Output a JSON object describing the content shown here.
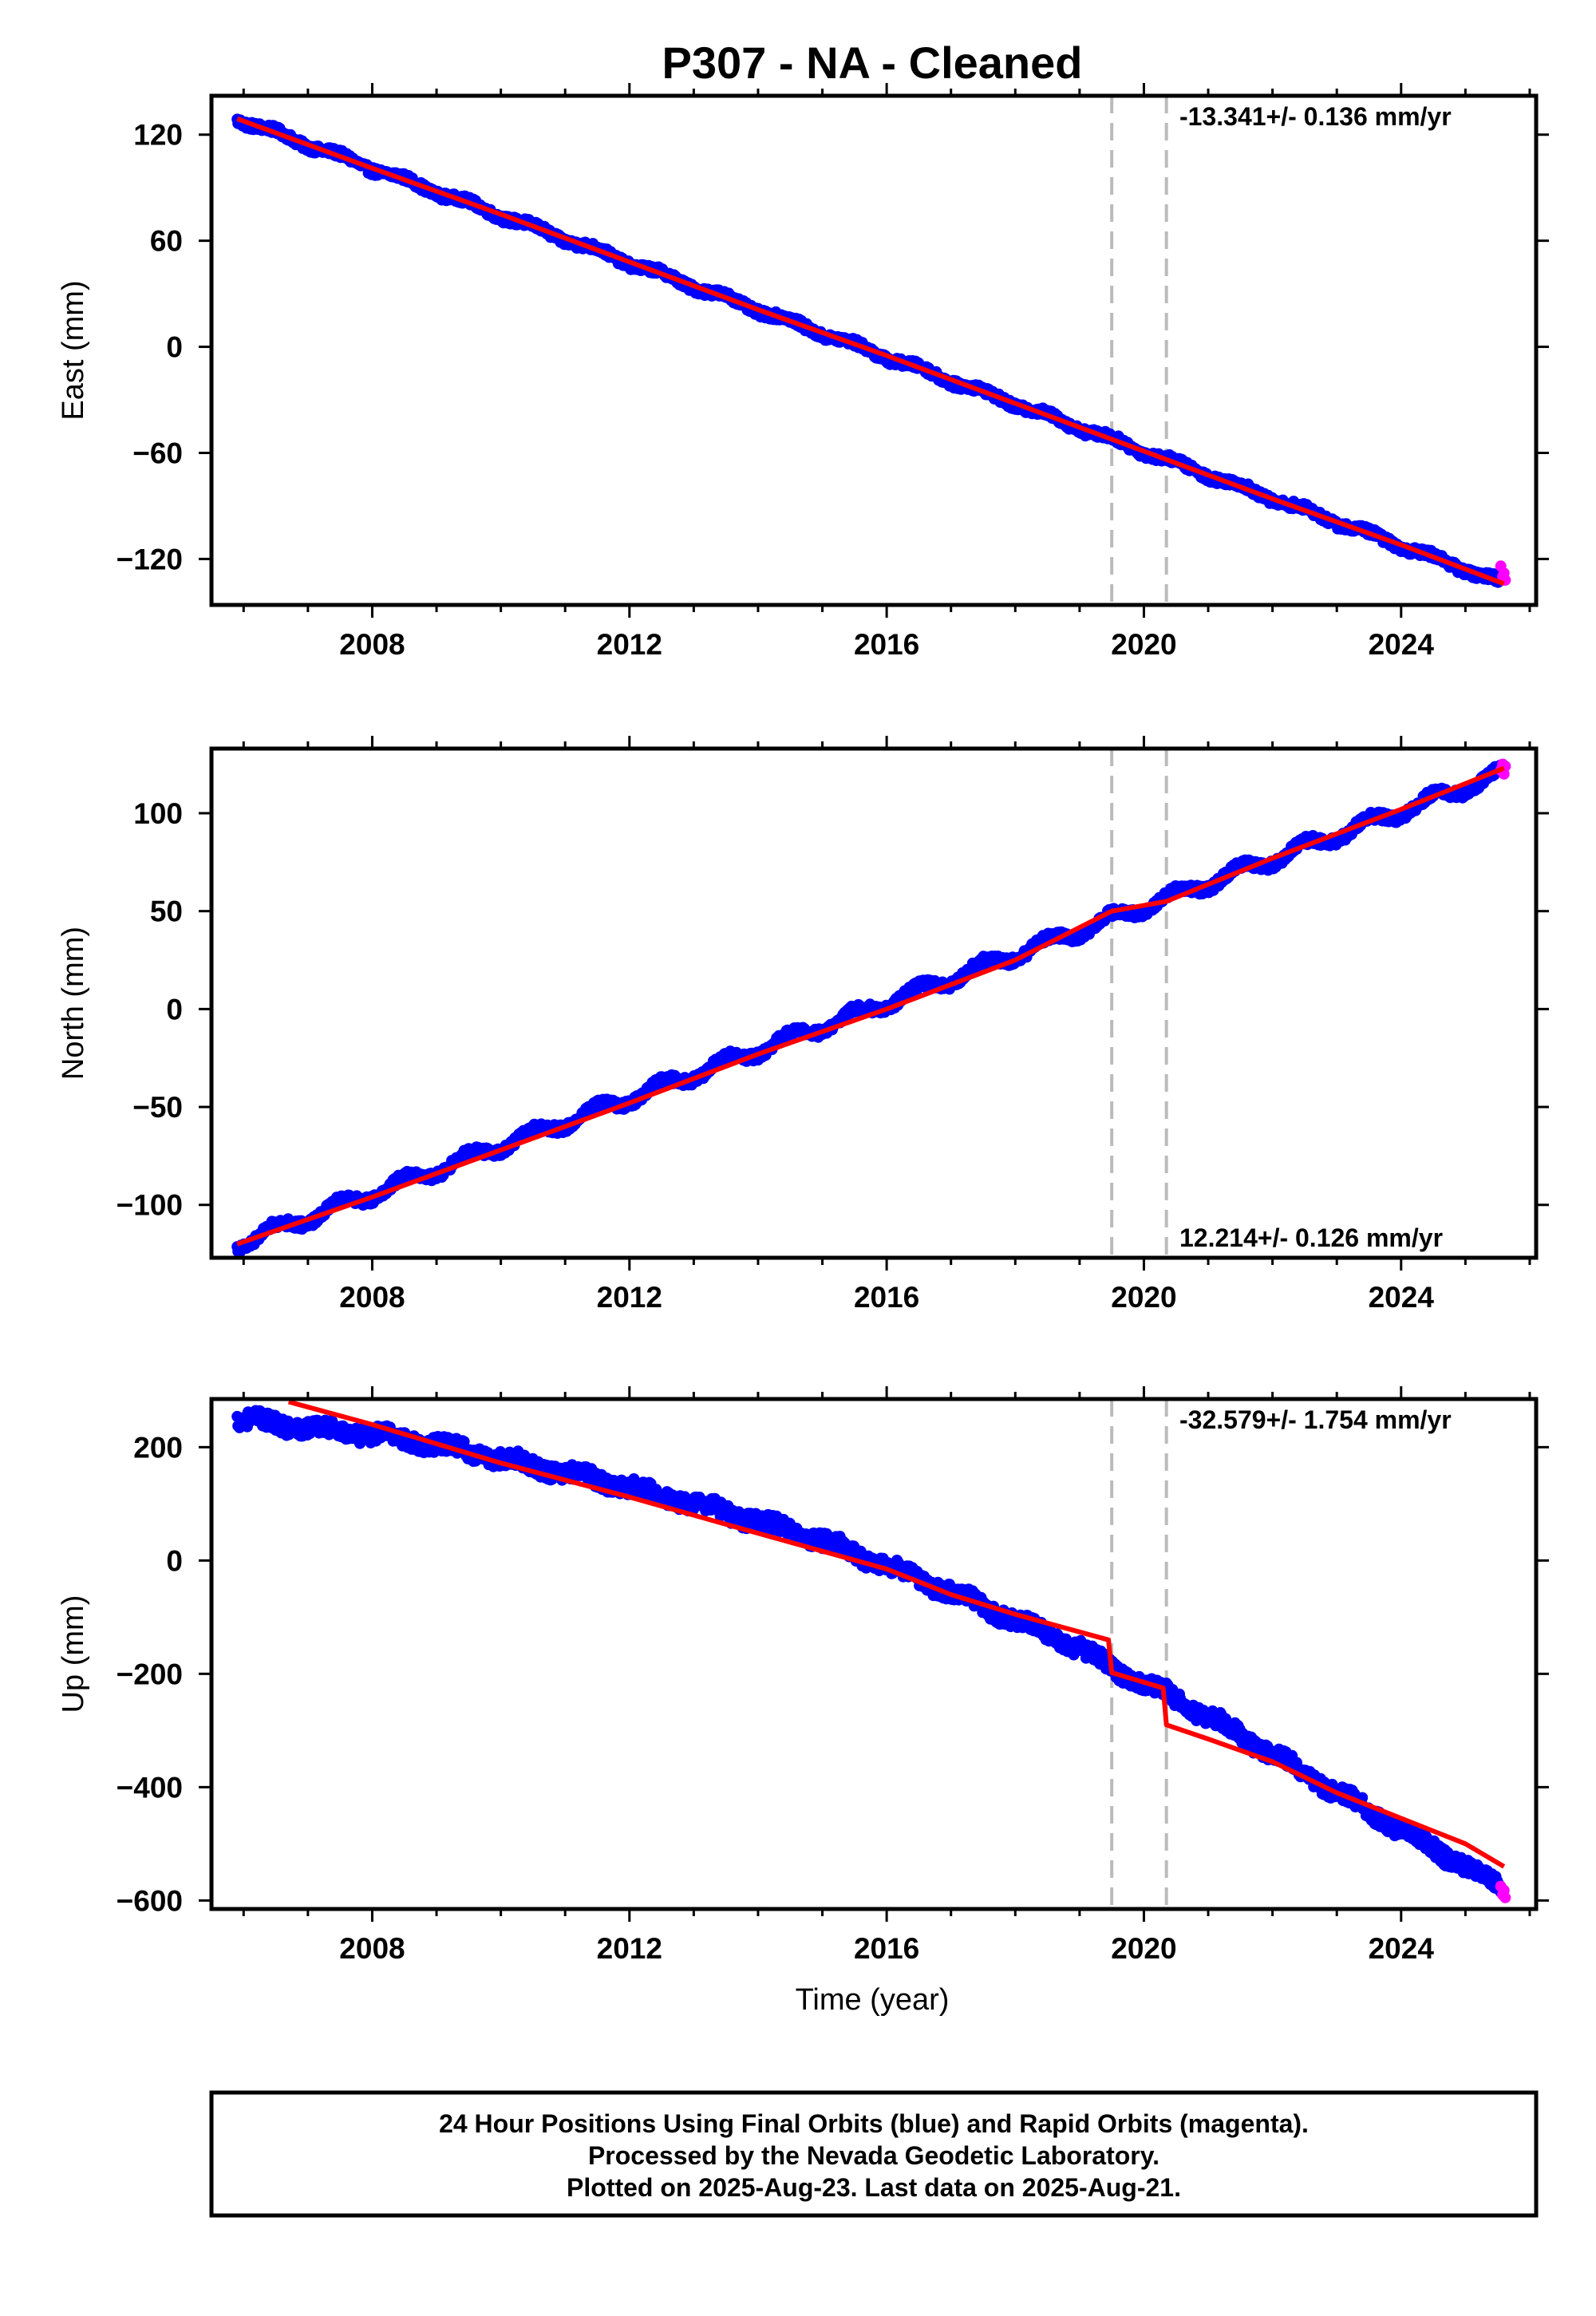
{
  "title": "P307  - NA - Cleaned",
  "colors": {
    "final_orbits": "#0000ff",
    "rapid_orbits": "#ff00ff",
    "model": "#ff0000",
    "event_lines": "#bbbbbb"
  },
  "xlabel": "Time (year)",
  "x_ticks": [
    "2008",
    "2012",
    "2016",
    "2020",
    "2024"
  ],
  "footer": [
    "24 Hour Positions Using Final Orbits (blue) and Rapid Orbits (magenta).",
    "Processed by the Nevada Geodetic Laboratory.",
    "Plotted on 2025-Aug-23. Last data on 2025-Aug-21."
  ],
  "chart_data": [
    {
      "type": "scatter",
      "component": "East",
      "ylabel": "East (mm)",
      "xlim": [
        2005.5,
        2026.1
      ],
      "ylim": [
        -146,
        142
      ],
      "y_ticks": [
        120,
        60,
        0,
        -60,
        -120
      ],
      "y_tick_labels": [
        "120",
        "60",
        "0",
        "−60",
        "−120"
      ],
      "rate_label": "-13.341+/- 0.136 mm/yr",
      "rate_position": "top-right",
      "event_lines_x": [
        2019.5,
        2020.35
      ],
      "trend": {
        "t0": 2005.9,
        "v0": 129.0,
        "rate": -13.341,
        "seasonal_amp": 1.5
      },
      "model_x": [
        2005.9,
        2008,
        2010,
        2012,
        2014,
        2016,
        2018,
        2020,
        2022,
        2024,
        2025.6
      ],
      "model_y": [
        129,
        101,
        75,
        48,
        21,
        -5,
        -32,
        -59,
        -86,
        -112,
        -134
      ],
      "rapid_points": [
        [
          2025.55,
          -124
        ],
        [
          2025.58,
          -130
        ],
        [
          2025.6,
          -128
        ],
        [
          2025.62,
          -132
        ]
      ],
      "grid": false
    },
    {
      "type": "scatter",
      "component": "North",
      "ylabel": "North (mm)",
      "xlim": [
        2005.5,
        2026.1
      ],
      "ylim": [
        -127,
        133
      ],
      "y_ticks": [
        100,
        50,
        0,
        -50,
        -100
      ],
      "y_tick_labels": [
        "100",
        "50",
        "0",
        "−50",
        "−100"
      ],
      "rate_label": "12.214+/- 0.126 mm/yr",
      "rate_position": "bottom-right",
      "event_lines_x": [
        2019.5,
        2020.35
      ],
      "trend": {
        "t0": 2005.9,
        "v0": -120.0,
        "rate": 12.214,
        "seasonal_amp": 3.0
      },
      "model_x": [
        2005.9,
        2008,
        2010,
        2012,
        2014,
        2016,
        2018,
        2019.5,
        2020.35,
        2022,
        2024,
        2025.6
      ],
      "model_y": [
        -120,
        -96,
        -72,
        -48,
        -23,
        0,
        25,
        50,
        55,
        77,
        102,
        123
      ],
      "rapid_points": [
        [
          2025.55,
          122
        ],
        [
          2025.58,
          125
        ],
        [
          2025.6,
          120
        ],
        [
          2025.62,
          124
        ]
      ],
      "grid": false
    },
    {
      "type": "scatter",
      "component": "Up",
      "ylabel": "Up (mm)",
      "xlim": [
        2005.5,
        2026.1
      ],
      "ylim": [
        -615,
        285
      ],
      "y_ticks": [
        200,
        0,
        -200,
        -400,
        -600
      ],
      "y_tick_labels": [
        "200",
        "0",
        "−200",
        "−400",
        "−600"
      ],
      "rate_label": "-32.579+/- 1.754 mm/yr",
      "rate_position": "top-right",
      "event_lines_x": [
        2019.5,
        2020.35
      ],
      "data_x": [
        2005.9,
        2007,
        2008,
        2009,
        2010,
        2011,
        2012,
        2013,
        2014,
        2015,
        2016,
        2017,
        2018,
        2019,
        2019.5,
        2020.35,
        2021,
        2022,
        2023,
        2024,
        2025,
        2025.6
      ],
      "data_y": [
        250,
        235,
        222,
        205,
        180,
        155,
        130,
        100,
        70,
        35,
        -10,
        -55,
        -105,
        -155,
        -190,
        -235,
        -275,
        -340,
        -410,
        -475,
        -540,
        -580
      ],
      "model_x": [
        2006.7,
        2008,
        2010,
        2012,
        2014,
        2016,
        2017,
        2018,
        2019.45,
        2019.5,
        2020.3,
        2020.35,
        2021,
        2022,
        2023,
        2024,
        2025,
        2025.6
      ],
      "model_y": [
        280,
        240,
        172,
        112,
        48,
        -15,
        -60,
        -95,
        -140,
        -198,
        -225,
        -290,
        -315,
        -355,
        -410,
        -455,
        -500,
        -540
      ],
      "rapid_points": [
        [
          2025.55,
          -575
        ],
        [
          2025.58,
          -590
        ],
        [
          2025.6,
          -582
        ],
        [
          2025.62,
          -595
        ]
      ],
      "grid": false
    }
  ]
}
